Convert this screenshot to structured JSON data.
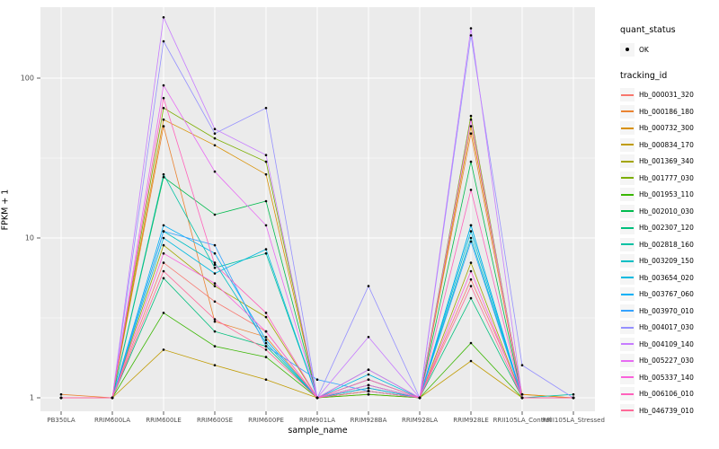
{
  "chart": {
    "ylabel": "FPKM + 1",
    "xlabel": "sample_name",
    "legend": {
      "quant_status_title": "quant_status",
      "quant_status_items": [
        {
          "label": "OK",
          "marker": "point",
          "color": "#000000"
        }
      ],
      "tracking_title": "tracking_id"
    },
    "panel_bg": "#EBEBEB",
    "grid_color": "#FFFFFF",
    "tick_text_color": "#4D4D4D"
  },
  "chart_data": {
    "type": "line",
    "title": "",
    "xlabel": "sample_name",
    "ylabel": "FPKM + 1",
    "yscale": "log10",
    "yticks": [
      1,
      10,
      100
    ],
    "ylim": [
      0.93,
      270
    ],
    "grid": "white major and minor on grey panel",
    "legend_position": "right",
    "point_marker": "black dot on every vertex (quant_status = OK)",
    "x_categories": [
      "PB350LA",
      "RRIM600LA",
      "RRIM600LE",
      "RRIM600SE",
      "RRIM600PE",
      "RRIM901LA",
      "RRIM928BA",
      "RRIM928LA",
      "RRIM928LE",
      "RRII105LA_Control",
      "RRII105LA_Stressed"
    ],
    "series": [
      {
        "name": "Hb_000031_320",
        "color": "#F8766D",
        "values": [
          1,
          1,
          7,
          4,
          2.6,
          1,
          1.1,
          1,
          5.5,
          1.05,
          1
        ]
      },
      {
        "name": "Hb_000186_180",
        "color": "#EA8331",
        "values": [
          1.05,
          1,
          50,
          3,
          2.4,
          1,
          1.1,
          1,
          45,
          1,
          1
        ]
      },
      {
        "name": "Hb_000732_300",
        "color": "#D89000",
        "values": [
          1,
          1,
          55,
          38,
          25,
          1,
          1.15,
          1,
          50,
          1.05,
          1
        ]
      },
      {
        "name": "Hb_000834_170",
        "color": "#C09B00",
        "values": [
          1,
          1,
          2,
          1.6,
          1.3,
          1,
          1.05,
          1,
          1.7,
          1,
          1
        ]
      },
      {
        "name": "Hb_001369_340",
        "color": "#A3A500",
        "values": [
          1,
          1,
          9,
          5,
          3.2,
          1,
          1.1,
          1,
          7,
          1,
          1
        ]
      },
      {
        "name": "Hb_001777_030",
        "color": "#7CAE00",
        "values": [
          1,
          1,
          65,
          42,
          30,
          1,
          1.2,
          1,
          58,
          1,
          1
        ]
      },
      {
        "name": "Hb_001953_110",
        "color": "#39B600",
        "values": [
          1,
          1,
          3.4,
          2.1,
          1.8,
          1,
          1.05,
          1,
          2.2,
          1,
          1
        ]
      },
      {
        "name": "Hb_002010_030",
        "color": "#00BB4E",
        "values": [
          1,
          1,
          24,
          14,
          17,
          1,
          1.3,
          1,
          30,
          1,
          1
        ]
      },
      {
        "name": "Hb_002307_120",
        "color": "#00BF7D",
        "values": [
          1,
          1,
          5.6,
          2.6,
          2.1,
          1,
          1.1,
          1,
          4.2,
          1,
          1
        ]
      },
      {
        "name": "Hb_002818_160",
        "color": "#00C1A3",
        "values": [
          1,
          1,
          25,
          6.5,
          8,
          1,
          1.5,
          1,
          12,
          1,
          1.05
        ]
      },
      {
        "name": "Hb_003209_150",
        "color": "#00BFC4",
        "values": [
          1,
          1,
          11,
          7,
          2.2,
          1,
          1.2,
          1,
          10,
          1,
          1
        ]
      },
      {
        "name": "Hb_003654_020",
        "color": "#00BAE0",
        "values": [
          1,
          1,
          10,
          6,
          8.5,
          1,
          1.4,
          1,
          11,
          1,
          1
        ]
      },
      {
        "name": "Hb_003767_060",
        "color": "#00B0F6",
        "values": [
          1,
          1,
          12,
          8,
          2.3,
          1,
          1.15,
          1,
          12,
          1,
          1
        ]
      },
      {
        "name": "Hb_003970_010",
        "color": "#35A2FF",
        "values": [
          1,
          1,
          11,
          9,
          2.1,
          1.3,
          1.1,
          1,
          9.5,
          1,
          1
        ]
      },
      {
        "name": "Hb_004017_030",
        "color": "#9590FF",
        "values": [
          1,
          1,
          170,
          45,
          65,
          1,
          5,
          1,
          185,
          1.6,
          1
        ]
      },
      {
        "name": "Hb_004109_140",
        "color": "#C77CFF",
        "values": [
          1,
          1,
          240,
          48,
          33,
          1,
          2.4,
          1,
          205,
          1,
          1
        ]
      },
      {
        "name": "Hb_005227_030",
        "color": "#E76BF3",
        "values": [
          1,
          1,
          90,
          26,
          12,
          1,
          1.5,
          1,
          55,
          1,
          1
        ]
      },
      {
        "name": "Hb_005337_140",
        "color": "#FA62DB",
        "values": [
          1,
          1,
          8,
          5.2,
          2.6,
          1,
          1.2,
          1,
          6.2,
          1,
          1
        ]
      },
      {
        "name": "Hb_006106_010",
        "color": "#FF62BC",
        "values": [
          1,
          1,
          75,
          6.8,
          3.4,
          1,
          1.3,
          1,
          20,
          1,
          1
        ]
      },
      {
        "name": "Hb_046739_010",
        "color": "#FF6A98",
        "values": [
          1,
          1,
          6.2,
          3.1,
          2,
          1,
          1.1,
          1,
          5,
          1,
          1
        ]
      }
    ]
  }
}
